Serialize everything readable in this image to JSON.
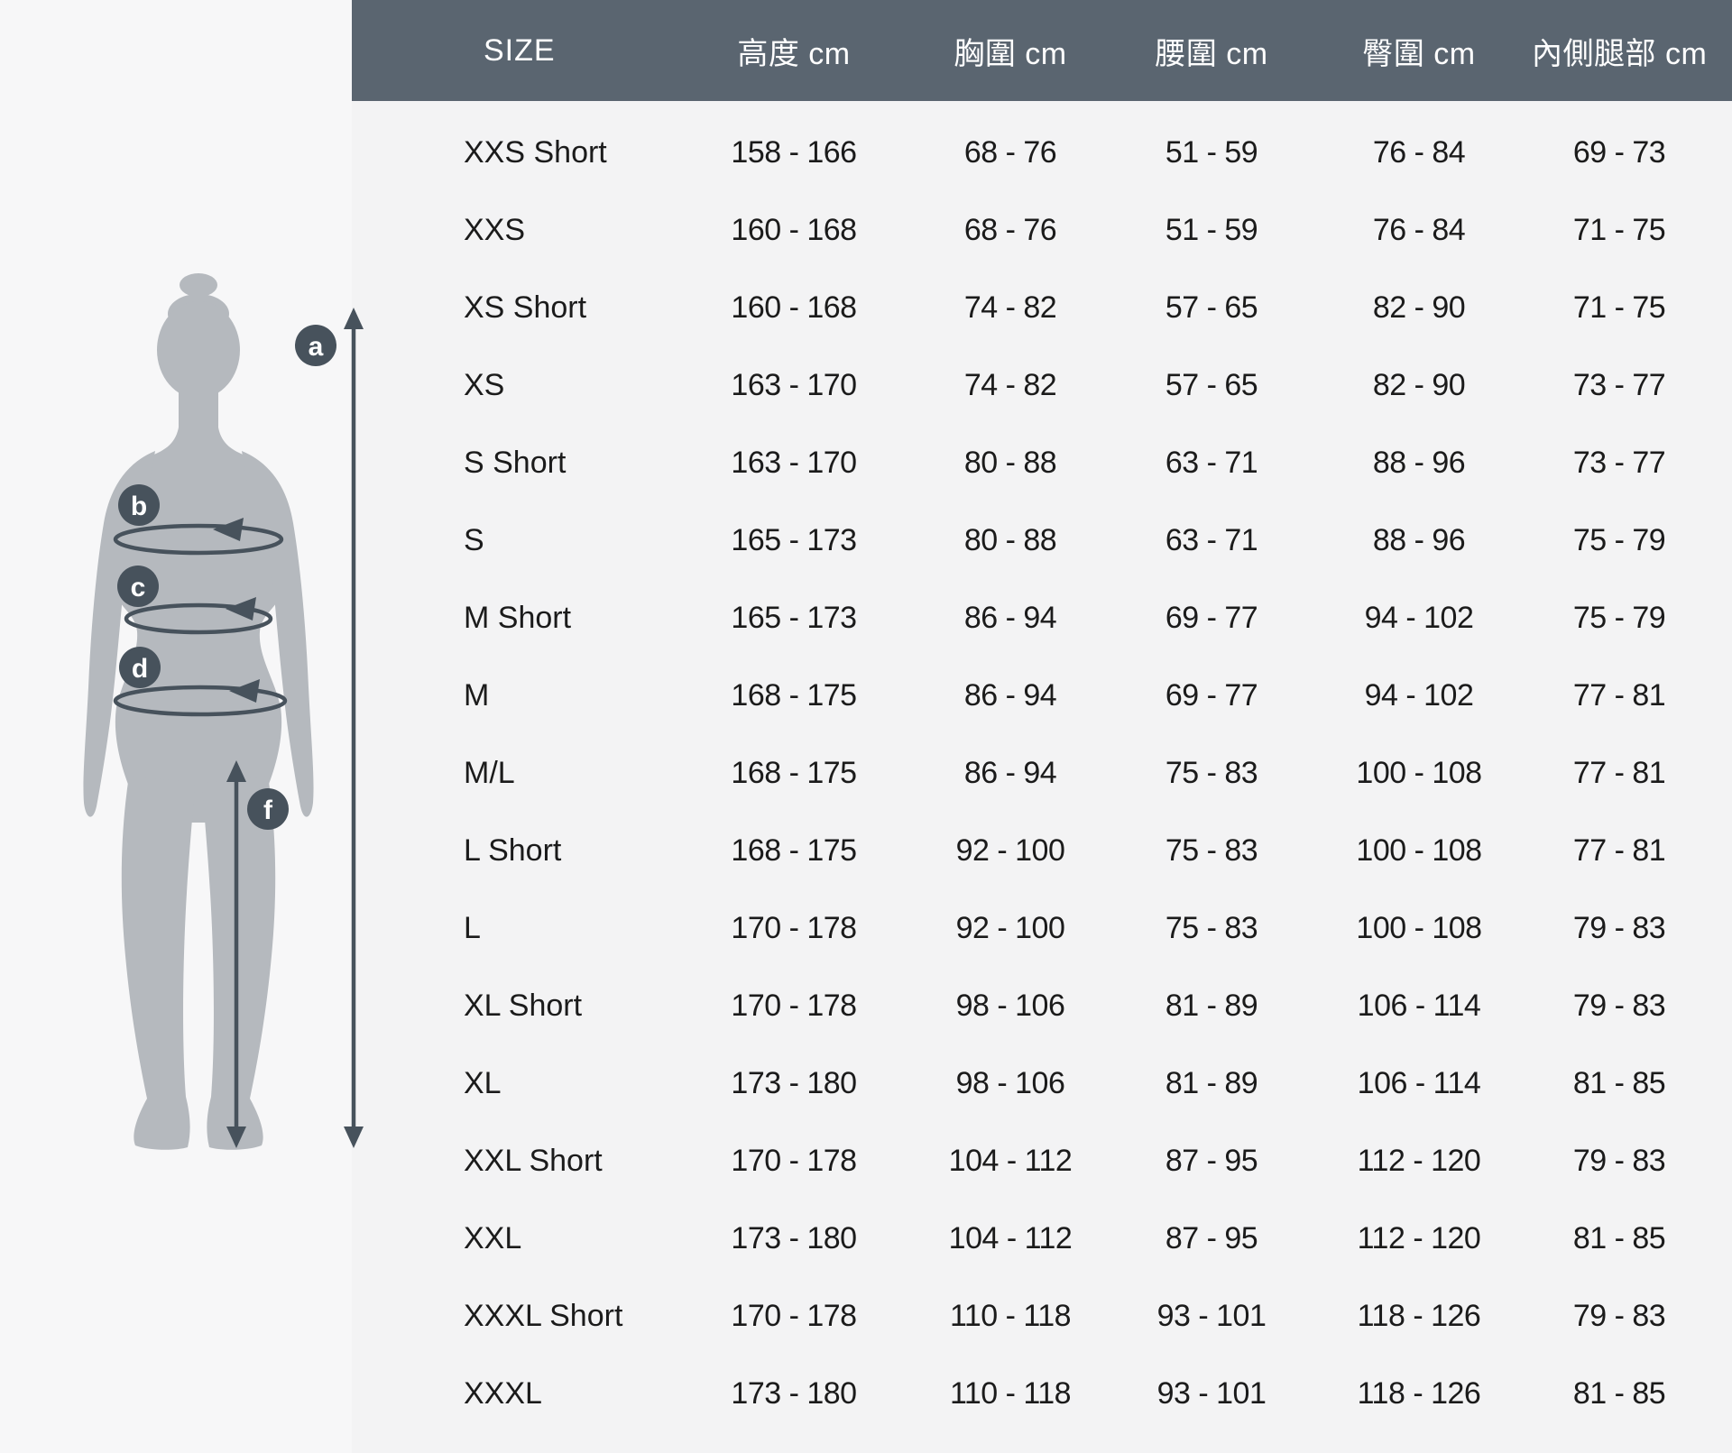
{
  "colors": {
    "left_background": "#f7f7f8",
    "table_background": "#f3f3f4",
    "header_background": "#5a6570",
    "header_text": "#ffffff",
    "row_text": "#1b1b1b",
    "silhouette": "#b5b9be",
    "marker": "#47525c"
  },
  "figure": {
    "markers": [
      {
        "id": "a",
        "label": "a"
      },
      {
        "id": "b",
        "label": "b"
      },
      {
        "id": "c",
        "label": "c"
      },
      {
        "id": "d",
        "label": "d"
      },
      {
        "id": "f",
        "label": "f"
      }
    ]
  },
  "table": {
    "columns": [
      {
        "key": "size",
        "label": "SIZE"
      },
      {
        "key": "height",
        "label": "高度 cm"
      },
      {
        "key": "chest",
        "label": "胸圍 cm"
      },
      {
        "key": "waist",
        "label": "腰圍 cm"
      },
      {
        "key": "hip",
        "label": "臀圍 cm"
      },
      {
        "key": "inseam",
        "label": "內側腿部 cm"
      }
    ],
    "rows": [
      {
        "size": "XXS Short",
        "height": "158 - 166",
        "chest": "68 - 76",
        "waist": "51 - 59",
        "hip": "76 - 84",
        "inseam": "69 - 73"
      },
      {
        "size": "XXS",
        "height": "160 - 168",
        "chest": "68 - 76",
        "waist": "51 - 59",
        "hip": "76 - 84",
        "inseam": "71 - 75"
      },
      {
        "size": "XS Short",
        "height": "160 - 168",
        "chest": "74 - 82",
        "waist": "57 - 65",
        "hip": "82 - 90",
        "inseam": "71 - 75"
      },
      {
        "size": "XS",
        "height": "163 - 170",
        "chest": "74 - 82",
        "waist": "57 - 65",
        "hip": "82 - 90",
        "inseam": "73 - 77"
      },
      {
        "size": "S Short",
        "height": "163 - 170",
        "chest": "80 - 88",
        "waist": "63 - 71",
        "hip": "88 - 96",
        "inseam": "73 - 77"
      },
      {
        "size": "S",
        "height": "165 - 173",
        "chest": "80 - 88",
        "waist": "63 - 71",
        "hip": "88 - 96",
        "inseam": "75 - 79"
      },
      {
        "size": "M Short",
        "height": "165 - 173",
        "chest": "86 - 94",
        "waist": "69 - 77",
        "hip": "94 - 102",
        "inseam": "75 - 79"
      },
      {
        "size": "M",
        "height": "168 - 175",
        "chest": "86 - 94",
        "waist": "69 - 77",
        "hip": "94 - 102",
        "inseam": "77 - 81"
      },
      {
        "size": "M/L",
        "height": "168 - 175",
        "chest": "86 - 94",
        "waist": "75 - 83",
        "hip": "100 - 108",
        "inseam": "77 - 81"
      },
      {
        "size": "L Short",
        "height": "168 - 175",
        "chest": "92 - 100",
        "waist": "75 - 83",
        "hip": "100 - 108",
        "inseam": "77 - 81"
      },
      {
        "size": "L",
        "height": "170 - 178",
        "chest": "92 - 100",
        "waist": "75 - 83",
        "hip": "100 - 108",
        "inseam": "79 - 83"
      },
      {
        "size": "XL Short",
        "height": "170 - 178",
        "chest": "98 - 106",
        "waist": "81 - 89",
        "hip": "106 - 114",
        "inseam": "79 - 83"
      },
      {
        "size": "XL",
        "height": "173 - 180",
        "chest": "98 - 106",
        "waist": "81 - 89",
        "hip": "106 - 114",
        "inseam": "81 - 85"
      },
      {
        "size": "XXL Short",
        "height": "170 - 178",
        "chest": "104 - 112",
        "waist": "87 - 95",
        "hip": "112 - 120",
        "inseam": "79 - 83"
      },
      {
        "size": "XXL",
        "height": "173 - 180",
        "chest": "104 - 112",
        "waist": "87 - 95",
        "hip": "112 - 120",
        "inseam": "81 - 85"
      },
      {
        "size": "XXXL Short",
        "height": "170 - 178",
        "chest": "110 - 118",
        "waist": "93 - 101",
        "hip": "118 - 126",
        "inseam": "79 - 83"
      },
      {
        "size": "XXXL",
        "height": "173 - 180",
        "chest": "110 - 118",
        "waist": "93 - 101",
        "hip": "118 - 126",
        "inseam": "81 - 85"
      }
    ]
  }
}
